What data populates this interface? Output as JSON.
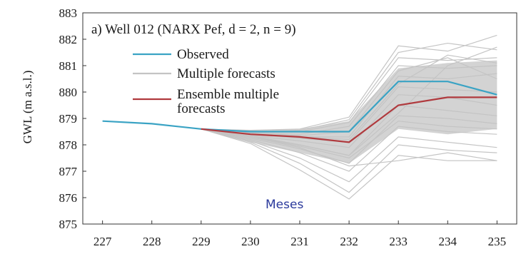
{
  "chart_data": {
    "type": "line",
    "title": "a) Well 012 (NARX Pef, d = 2, n = 9)",
    "xlabel": "",
    "ylabel": "GWL (m a.s.l.)",
    "annotation": "Meses",
    "x": [
      227,
      228,
      229,
      230,
      231,
      232,
      233,
      234,
      235
    ],
    "xlim": [
      226.6,
      235.4
    ],
    "ylim": [
      875,
      883
    ],
    "yticks": [
      875,
      876,
      877,
      878,
      879,
      880,
      881,
      882,
      883
    ],
    "grid": false,
    "legend_position": "top-left",
    "series": [
      {
        "name": "Observed",
        "color": "#3aa3c4",
        "x": [
          227,
          228,
          229,
          230,
          231,
          232,
          233,
          234,
          235
        ],
        "values": [
          878.9,
          878.8,
          878.6,
          878.5,
          878.5,
          878.5,
          880.4,
          880.4,
          879.9
        ]
      },
      {
        "name": "Multiple forecasts",
        "color": "#c4c4c4",
        "x": [
          229,
          230,
          231,
          232,
          233,
          234,
          235
        ],
        "lines": [
          [
            878.6,
            878.55,
            878.6,
            879.05,
            881.75,
            881.55,
            882.15
          ],
          [
            878.6,
            878.5,
            878.55,
            878.95,
            881.5,
            881.85,
            881.6
          ],
          [
            878.6,
            878.5,
            878.5,
            878.85,
            881.3,
            881.2,
            881.3
          ],
          [
            878.6,
            878.45,
            878.4,
            878.7,
            881.0,
            880.9,
            881.0
          ],
          [
            878.6,
            878.45,
            878.35,
            878.5,
            880.8,
            881.3,
            880.5
          ],
          [
            878.6,
            878.4,
            878.3,
            878.3,
            880.6,
            880.5,
            880.7
          ],
          [
            878.6,
            878.4,
            878.25,
            878.1,
            880.2,
            880.1,
            880.0
          ],
          [
            878.6,
            878.35,
            878.15,
            877.9,
            879.9,
            879.8,
            879.5
          ],
          [
            878.6,
            878.3,
            878.0,
            877.6,
            879.5,
            879.3,
            879.1
          ],
          [
            878.6,
            878.25,
            877.85,
            877.3,
            879.1,
            879.0,
            878.8
          ],
          [
            878.6,
            878.2,
            877.7,
            877.0,
            878.7,
            878.5,
            878.4
          ],
          [
            878.6,
            878.15,
            877.5,
            876.6,
            878.3,
            878.1,
            877.9
          ],
          [
            878.6,
            878.1,
            877.3,
            876.2,
            878.0,
            877.8,
            877.7
          ],
          [
            878.6,
            878.05,
            877.05,
            875.95,
            877.6,
            877.4,
            877.4
          ],
          [
            878.6,
            878.3,
            877.9,
            877.2,
            877.4,
            877.7,
            877.4
          ],
          [
            878.6,
            878.35,
            878.0,
            877.6,
            879.2,
            881.0,
            881.7
          ],
          [
            878.6,
            878.45,
            878.3,
            878.2,
            880.3,
            881.4,
            881.1
          ],
          [
            878.6,
            878.3,
            877.95,
            877.5,
            878.9,
            878.7,
            878.6
          ]
        ]
      },
      {
        "name": "Ensemble multiple\nforecasts",
        "color": "#b03a3e",
        "x": [
          229,
          230,
          231,
          232,
          233,
          234,
          235
        ],
        "values": [
          878.6,
          878.4,
          878.3,
          878.1,
          879.5,
          879.8,
          879.8
        ]
      }
    ],
    "ensemble_band": {
      "x": [
        229,
        230,
        231,
        232,
        233,
        234,
        235
      ],
      "upper": [
        878.6,
        878.55,
        878.6,
        878.9,
        880.9,
        881.1,
        881.2
      ],
      "lower": [
        878.6,
        878.1,
        877.7,
        877.3,
        878.6,
        878.4,
        878.6
      ],
      "color": "#c4c4c4"
    }
  }
}
